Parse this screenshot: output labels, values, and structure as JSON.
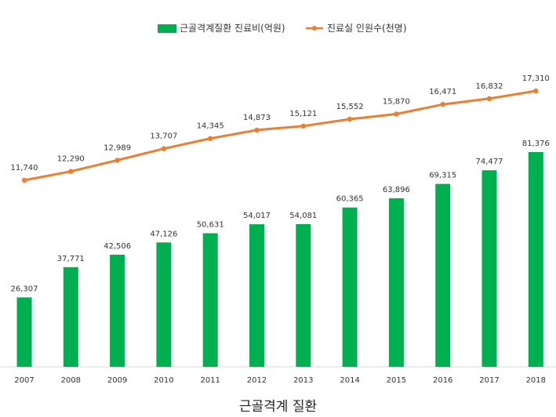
{
  "chart_data": {
    "type": "bar",
    "categories": [
      "2007",
      "2008",
      "2009",
      "2010",
      "2011",
      "2012",
      "2013",
      "2014",
      "2015",
      "2016",
      "2017",
      "2018"
    ],
    "series": [
      {
        "name": "근골격계질환 진료비(억원)",
        "type": "bar",
        "color": "#00b050",
        "values": [
          26307,
          37771,
          42506,
          47126,
          50631,
          54017,
          54081,
          60365,
          63896,
          69315,
          74477,
          81376
        ],
        "labels": [
          "26,307",
          "37,771",
          "42,506",
          "47,126",
          "50,631",
          "54,017",
          "54,081",
          "60,365",
          "63,896",
          "69,315",
          "74,477",
          "81,376"
        ]
      },
      {
        "name": "진료실 인원수(천명)",
        "type": "line",
        "color": "#ed7d31",
        "values": [
          11740,
          12290,
          12989,
          13707,
          14345,
          14873,
          15121,
          15552,
          15870,
          16471,
          16832,
          17310
        ],
        "labels": [
          "11,740",
          "12,290",
          "12,989",
          "13,707",
          "14,345",
          "14,873",
          "15,121",
          "15,552",
          "15,870",
          "16,471",
          "16,832",
          "17,310"
        ]
      }
    ],
    "legend_position": "top-center",
    "grid": false
  },
  "caption": "근골격계 질환"
}
